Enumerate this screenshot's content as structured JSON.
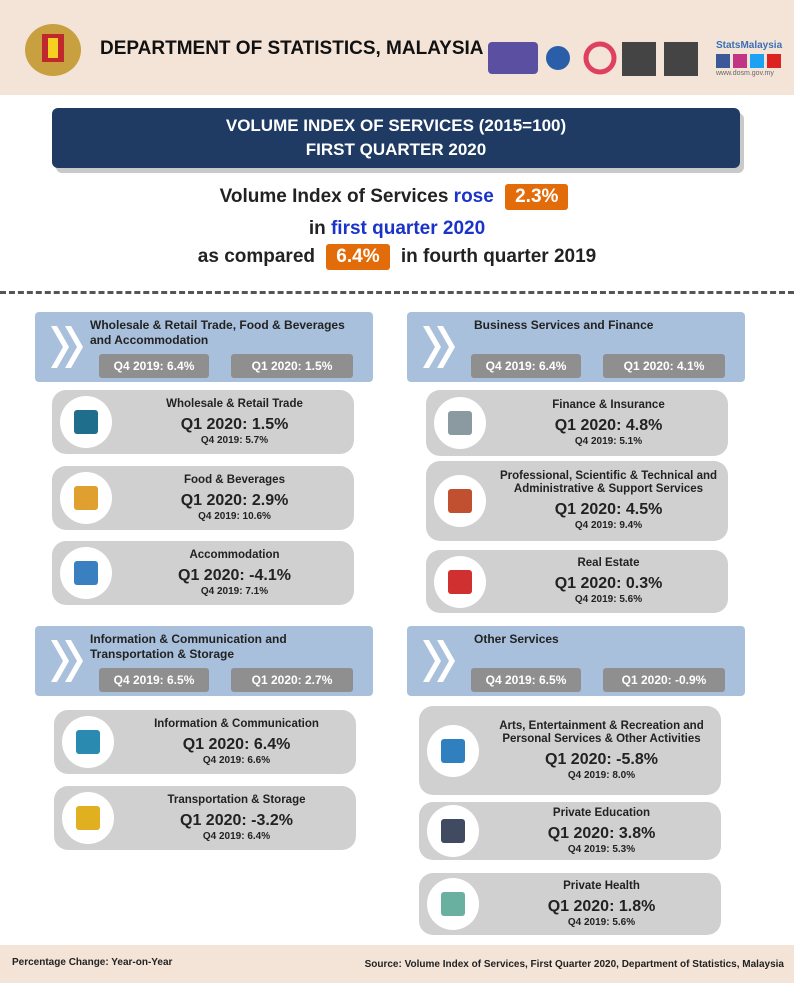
{
  "header": {
    "title": "DEPARTMENT OF STATISTICS, MALAYSIA",
    "brand": "StatsMalaysia",
    "website": "www.dosm.gov.my"
  },
  "banner": {
    "line1": "VOLUME INDEX OF SERVICES (2015=100)",
    "line2": "FIRST QUARTER 2020"
  },
  "headline": {
    "subject": "Volume Index of Services",
    "verb": "rose",
    "growth": "2.3%",
    "in": "in",
    "period": "first quarter 2020",
    "compared": "as compared",
    "previous": "6.4%",
    "previous_period": "in fourth quarter 2019"
  },
  "sections": [
    {
      "title": "Wholesale & Retail Trade, Food & Beverages and Accommodation",
      "q4": "Q4 2019: 6.4%",
      "q1": "Q1 2020: 1.5%",
      "items": [
        {
          "name": "Wholesale & Retail Trade",
          "q1": "Q1 2020: 1.5%",
          "q4": "Q4 2019: 5.7%"
        },
        {
          "name": "Food & Beverages",
          "q1": "Q1 2020: 2.9%",
          "q4": "Q4 2019: 10.6%"
        },
        {
          "name": "Accommodation",
          "q1": "Q1 2020: -4.1%",
          "q4": "Q4 2019: 7.1%"
        }
      ]
    },
    {
      "title": "Business Services and Finance",
      "q4": "Q4 2019: 6.4%",
      "q1": "Q1 2020: 4.1%",
      "items": [
        {
          "name": "Finance & Insurance",
          "q1": "Q1 2020: 4.8%",
          "q4": "Q4 2019: 5.1%"
        },
        {
          "name": "Professional, Scientific & Technical and Administrative & Support Services",
          "q1": "Q1 2020: 4.5%",
          "q4": "Q4 2019: 9.4%"
        },
        {
          "name": "Real Estate",
          "q1": "Q1 2020: 0.3%",
          "q4": "Q4 2019: 5.6%"
        }
      ]
    },
    {
      "title": "Information & Communication and Transportation & Storage",
      "q4": "Q4 2019: 6.5%",
      "q1": "Q1 2020: 2.7%",
      "items": [
        {
          "name": "Information & Communication",
          "q1": "Q1 2020: 6.4%",
          "q4": "Q4 2019: 6.6%"
        },
        {
          "name": "Transportation & Storage",
          "q1": "Q1 2020: -3.2%",
          "q4": "Q4 2019: 6.4%"
        }
      ]
    },
    {
      "title": "Other Services",
      "q4": "Q4 2019: 6.5%",
      "q1": "Q1 2020: -0.9%",
      "items": [
        {
          "name": "Arts, Entertainment & Recreation and Personal Services & Other Activities",
          "q1": "Q1 2020: -5.8%",
          "q4": "Q4 2019: 8.0%"
        },
        {
          "name": "Private Education",
          "q1": "Q1 2020: 3.8%",
          "q4": "Q4 2019: 5.3%"
        },
        {
          "name": "Private Health",
          "q1": "Q1 2020: 1.8%",
          "q4": "Q4 2019: 5.6%"
        }
      ]
    }
  ],
  "footer": {
    "note": "Percentage Change: Year-on-Year",
    "source": "Source: Volume Index of Services, First Quarter 2020, Department of Statistics, Malaysia"
  }
}
